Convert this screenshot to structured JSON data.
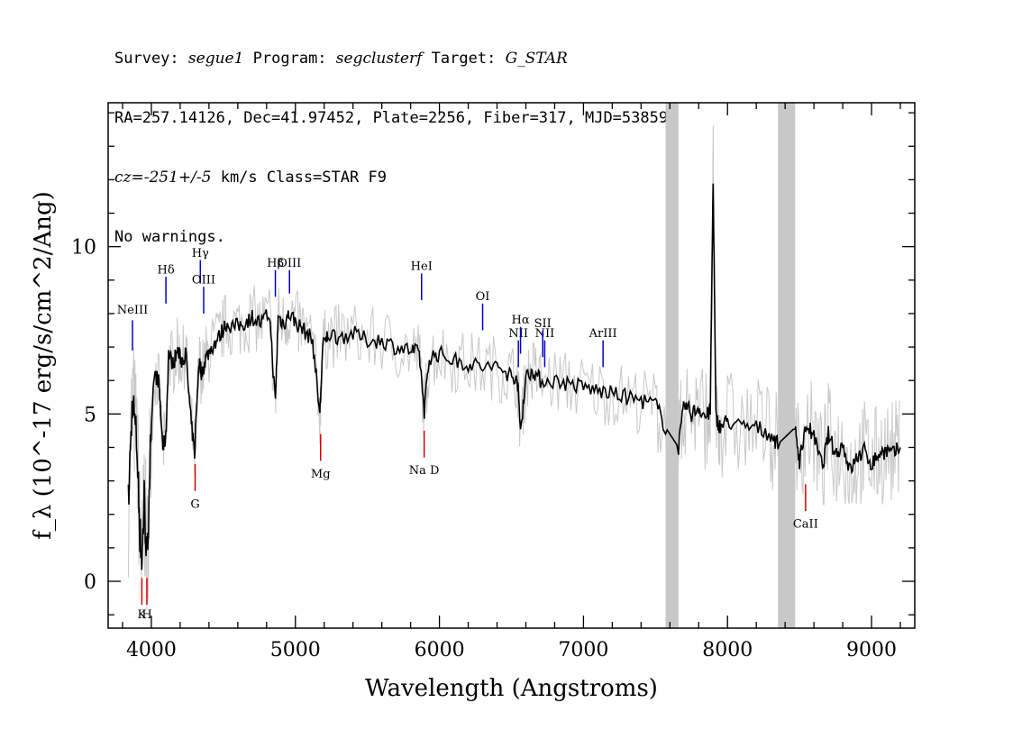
{
  "header": {
    "survey_label": "Survey:",
    "survey": "segue1",
    "program_label": "Program:",
    "program": "segclusterf",
    "target_label": "Target:",
    "target": "G_STAR",
    "line2": "RA=257.14126, Dec=41.97452, Plate=2256, Fiber=317, MJD=53859",
    "cz_label": "cz=",
    "cz_value": "-251+/-5",
    "cz_rest": " km/s Class=STAR F9",
    "line4": "No warnings."
  },
  "chart_data": {
    "type": "line",
    "xlabel": "Wavelength (Angstroms)",
    "ylabel": "f_λ (10^-17 erg/s/cm^2/Ang)",
    "xlim": [
      3700,
      9300
    ],
    "ylim": [
      -1.4,
      14.3
    ],
    "x_ticks": [
      4000,
      5000,
      6000,
      7000,
      8000,
      9000
    ],
    "y_ticks": [
      0,
      5,
      10
    ],
    "colors": {
      "flux": "#000000",
      "noise": "#c8c8c8",
      "emission": "#0000cc",
      "absorption": "#dd0000",
      "mask": "#c8c8c8"
    },
    "masked_regions": [
      [
        7570,
        7660
      ],
      [
        8350,
        8470
      ]
    ],
    "series": [
      {
        "x": [
          3840,
          3870,
          3900,
          3920,
          3935,
          3950,
          3970,
          3990,
          4020,
          4050,
          4080,
          4101,
          4120,
          4150,
          4180,
          4210,
          4240,
          4270,
          4300,
          4330,
          4350,
          4380,
          4420,
          4470,
          4520,
          4580,
          4640,
          4700,
          4760,
          4820,
          4861,
          4880,
          4920,
          4960,
          5010,
          5060,
          5120,
          5170,
          5190,
          5230,
          5300,
          5400,
          5500,
          5600,
          5700,
          5800,
          5860,
          5895,
          5930,
          6000,
          6100,
          6200,
          6300,
          6400,
          6480,
          6540,
          6563,
          6600,
          6650,
          6700,
          6800,
          6900,
          7000,
          7100,
          7200,
          7300,
          7400,
          7500,
          7570,
          7660,
          7700,
          7750,
          7800,
          7850,
          7880,
          7900,
          7920,
          7950,
          8000,
          8100,
          8200,
          8300,
          8350,
          8470,
          8500,
          8550,
          8600,
          8660,
          8700,
          8750,
          8800,
          8850,
          8900,
          8950,
          9000,
          9050,
          9100,
          9150,
          9200
        ],
        "y": [
          2.3,
          5.5,
          4.0,
          1.5,
          0.6,
          2.5,
          0.5,
          3.5,
          6.2,
          6.0,
          4.0,
          4.3,
          6.8,
          6.5,
          6.9,
          6.6,
          6.8,
          5.0,
          3.8,
          6.6,
          6.2,
          6.7,
          7.0,
          7.3,
          7.7,
          7.6,
          7.7,
          7.9,
          7.7,
          8.0,
          5.3,
          7.9,
          7.7,
          8.0,
          7.7,
          7.5,
          7.2,
          5.0,
          7.0,
          7.4,
          7.3,
          7.4,
          7.2,
          7.2,
          7.0,
          6.9,
          6.8,
          5.1,
          6.7,
          6.8,
          6.6,
          6.5,
          6.4,
          6.4,
          6.2,
          6.1,
          4.5,
          6.1,
          6.3,
          6.0,
          6.0,
          5.9,
          5.8,
          5.7,
          5.6,
          5.5,
          5.4,
          5.3,
          4.6,
          4.0,
          5.3,
          5.0,
          5.2,
          4.9,
          5.1,
          12.1,
          4.9,
          4.6,
          4.8,
          4.6,
          4.6,
          4.4,
          4.1,
          4.6,
          3.6,
          4.7,
          4.3,
          3.4,
          4.4,
          3.8,
          4.1,
          3.3,
          3.7,
          3.9,
          3.5,
          3.8,
          3.9,
          3.8,
          4.0
        ]
      }
    ],
    "line_labels": [
      {
        "text": "NeIII",
        "x": 3869,
        "kind": "emission",
        "label_y": 8.0,
        "y0": 6.9,
        "y1": 7.8
      },
      {
        "text": "Hδ",
        "x": 4101,
        "kind": "emission",
        "label_y": 9.2,
        "y0": 8.3,
        "y1": 9.1
      },
      {
        "text": "Hγ",
        "x": 4340,
        "kind": "emission",
        "label_y": 9.7,
        "y0": 8.9,
        "y1": 9.6
      },
      {
        "text": "OIII",
        "x": 4363,
        "kind": "emission",
        "label_y": 8.9,
        "y0": 8.0,
        "y1": 8.8
      },
      {
        "text": "Hβ",
        "x": 4861,
        "kind": "emission",
        "label_y": 9.4,
        "y0": 8.5,
        "y1": 9.3
      },
      {
        "text": "OIII",
        "x": 4959,
        "kind": "emission",
        "label_y": 9.4,
        "y0": 8.6,
        "y1": 9.3
      },
      {
        "text": "HeI",
        "x": 5876,
        "kind": "emission",
        "label_y": 9.3,
        "y0": 8.4,
        "y1": 9.2
      },
      {
        "text": "OI",
        "x": 6300,
        "kind": "emission",
        "label_y": 8.4,
        "y0": 7.5,
        "y1": 8.3
      },
      {
        "text": "NII",
        "x": 6548,
        "kind": "emission",
        "label_y": 7.3,
        "y0": 6.4,
        "y1": 7.2
      },
      {
        "text": "Hα",
        "x": 6563,
        "kind": "emission",
        "label_y": 7.7,
        "y0": 6.8,
        "y1": 7.6
      },
      {
        "text": "NII",
        "x": 6731,
        "kind": "emission",
        "label_y": 7.3,
        "y0": 6.4,
        "y1": 7.2
      },
      {
        "text": "SII",
        "x": 6717,
        "kind": "emission",
        "label_y": 7.6,
        "y0": 6.7,
        "y1": 7.5
      },
      {
        "text": "ArIII",
        "x": 7136,
        "kind": "emission",
        "label_y": 7.3,
        "y0": 6.4,
        "y1": 7.2
      },
      {
        "text": "K",
        "x": 3934,
        "kind": "absorption",
        "label_y": -1.1,
        "y0": -0.7,
        "y1": 0.1
      },
      {
        "text": "H",
        "x": 3969,
        "kind": "absorption",
        "label_y": -1.1,
        "y0": -0.7,
        "y1": 0.1
      },
      {
        "text": "G",
        "x": 4304,
        "kind": "absorption",
        "label_y": 2.2,
        "y0": 2.7,
        "y1": 3.5
      },
      {
        "text": "Mg",
        "x": 5175,
        "kind": "absorption",
        "label_y": 3.1,
        "y0": 3.6,
        "y1": 4.4
      },
      {
        "text": "Na D",
        "x": 5894,
        "kind": "absorption",
        "label_y": 3.2,
        "y0": 3.7,
        "y1": 4.5
      },
      {
        "text": "CaII",
        "x": 8542,
        "kind": "absorption",
        "label_y": 1.6,
        "y0": 2.1,
        "y1": 2.9
      }
    ]
  }
}
